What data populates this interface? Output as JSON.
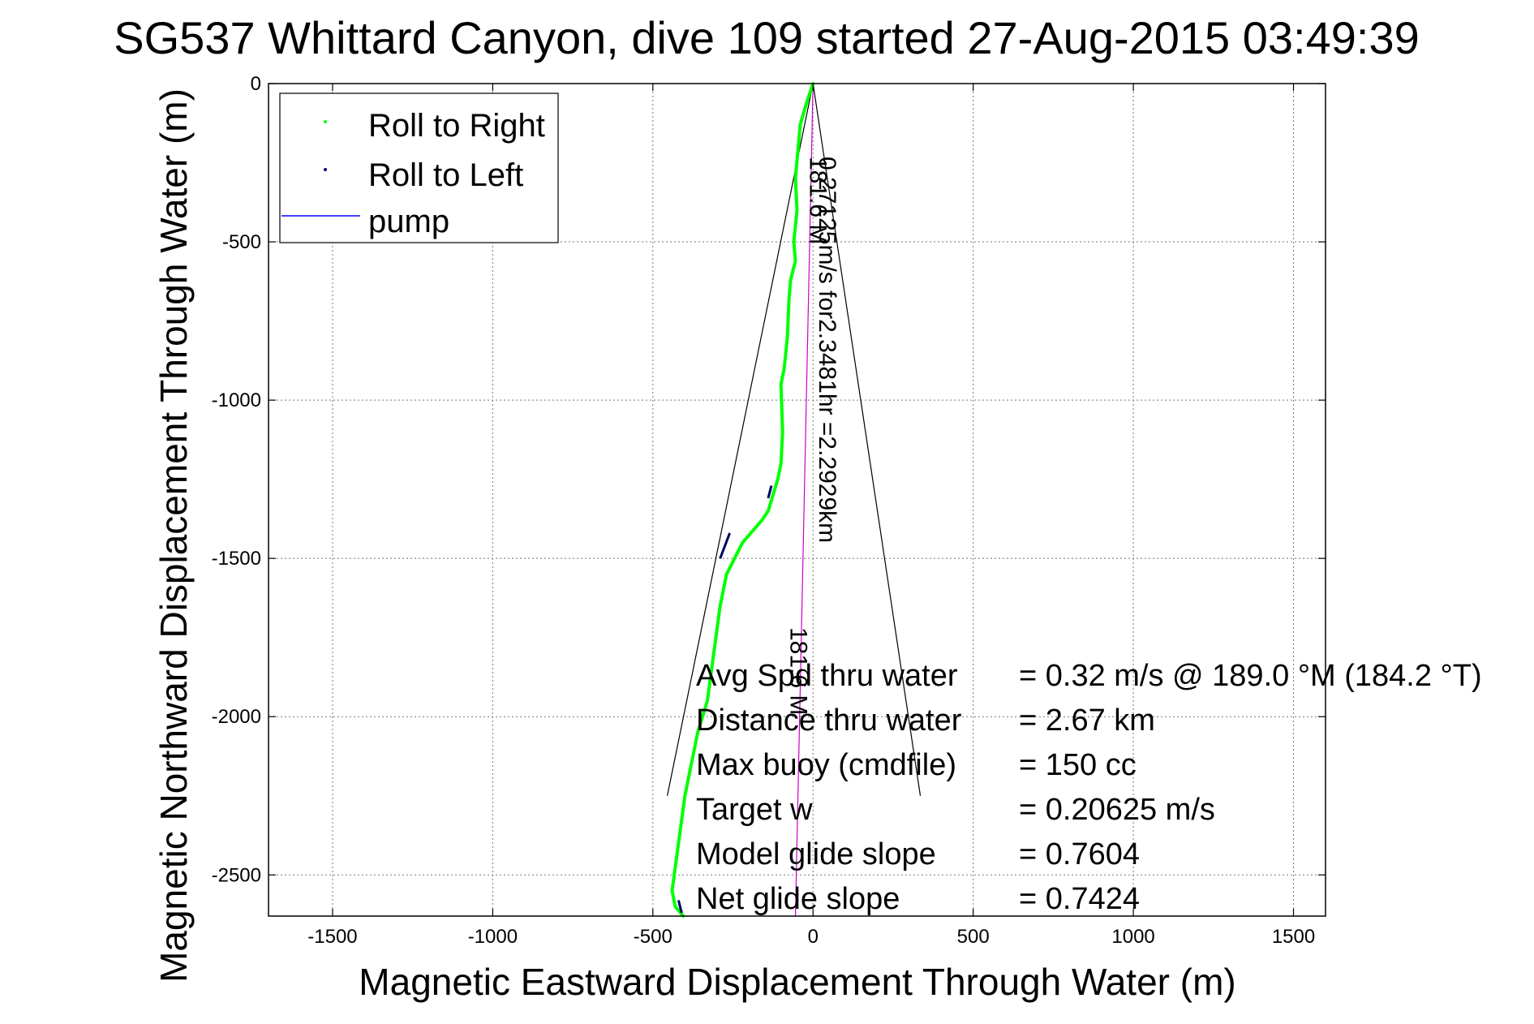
{
  "chart_data": {
    "type": "line",
    "title": "SG537 Whittard Canyon, dive 109 started 27-Aug-2015 03:49:39",
    "xlabel": "Magnetic Eastward Displacement Through Water (m)",
    "ylabel": "Magnetic Northward Displacement Through Water (m)",
    "xlim": [
      -1700,
      1600
    ],
    "ylim": [
      -2630,
      0
    ],
    "xticks": [
      -1500,
      -1000,
      -500,
      0,
      500,
      1000,
      1500
    ],
    "yticks": [
      0,
      -500,
      -1000,
      -1500,
      -2000,
      -2500
    ],
    "grid": true,
    "legend": {
      "placement": "top-left",
      "entries": [
        {
          "name": "Roll to Right",
          "color": "#00ff00",
          "marker": "dot"
        },
        {
          "name": "Roll to Left",
          "color": "#000066",
          "marker": "dot"
        },
        {
          "name": "pump",
          "color": "#0000ff",
          "marker": "line"
        }
      ]
    },
    "track": {
      "name": "Roll to Right",
      "color": "#00ff00",
      "x": [
        0,
        -20,
        -40,
        -55,
        -50,
        -60,
        -55,
        -70,
        -75,
        -80,
        -90,
        -100,
        -95,
        -100,
        -110,
        -125,
        -140,
        -160,
        -220,
        -270,
        -290,
        -310,
        -330,
        -360,
        -400,
        -420,
        -440,
        -430,
        -405
      ],
      "y": [
        0,
        -60,
        -130,
        -300,
        -400,
        -500,
        -560,
        -620,
        -680,
        -800,
        -900,
        -950,
        -1100,
        -1200,
        -1250,
        -1300,
        -1350,
        -1380,
        -1450,
        -1550,
        -1650,
        -1800,
        -1950,
        -2050,
        -2250,
        -2400,
        -2550,
        -2600,
        -2630
      ]
    },
    "left_roll_segments": [
      {
        "x": [
          -130,
          -140
        ],
        "y": [
          -1270,
          -1310
        ]
      },
      {
        "x": [
          -260,
          -290
        ],
        "y": [
          -1420,
          -1500
        ]
      },
      {
        "x": [
          -420,
          -410
        ],
        "y": [
          -2580,
          -2620
        ]
      }
    ],
    "pump_line": {
      "name": "pump",
      "color": "#cc00cc",
      "x": [
        0,
        -55
      ],
      "y": [
        0,
        -2630
      ]
    },
    "cone": {
      "color": "#000000",
      "apex": [
        0,
        0
      ],
      "left_end": [
        -455,
        -2250
      ],
      "right_end": [
        335,
        -2250
      ]
    },
    "annotations": {
      "rotated_label_1": "0.27125m/s for2.3481hr =2.2929km",
      "rotated_label_2": "181.6 M",
      "rotated_label_3": "181.6 M"
    },
    "stats": [
      {
        "label": "Avg Spd thru water",
        "value": "=  0.32 m/s @ 189.0 °M (184.2 °T)"
      },
      {
        "label": "Distance thru water",
        "value": "=  2.67 km"
      },
      {
        "label": "Max buoy (cmdfile)",
        "value": "= 150 cc"
      },
      {
        "label": "Target w",
        "value": "= 0.20625 m/s"
      },
      {
        "label": "Model glide slope",
        "value": "= 0.7604"
      },
      {
        "label": "Net glide slope",
        "value": "= 0.7424"
      }
    ]
  }
}
